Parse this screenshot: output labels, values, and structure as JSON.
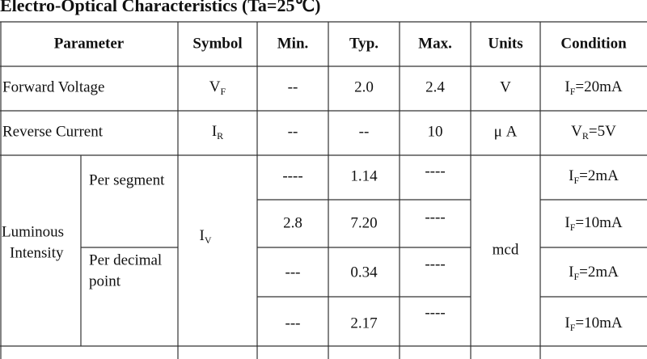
{
  "title": "Electro-Optical Characteristics (Ta=25℃)",
  "table": {
    "header": [
      "Parameter",
      "Symbol",
      "Min.",
      "Typ.",
      "Max.",
      "Units",
      "Condition"
    ],
    "rows": [
      {
        "parameter": "Forward Voltage",
        "symbol": {
          "main": "V",
          "sub": "F"
        },
        "min": "--",
        "typ": "2.0",
        "max": "2.4",
        "units": "V",
        "condition": {
          "main": "I",
          "sub": "F",
          "rest": "=20mA"
        }
      },
      {
        "parameter": "Reverse Current",
        "symbol": {
          "main": "I",
          "sub": "R"
        },
        "min": "--",
        "typ": "--",
        "max": "10",
        "units": "μ A",
        "condition": {
          "main": "V",
          "sub": "R",
          "rest": "=5V"
        }
      }
    ],
    "luminous": {
      "parameter": [
        "Luminous",
        "Intensity"
      ],
      "symbol": {
        "main": "I",
        "sub": "V"
      },
      "units": "mcd",
      "groups": [
        [
          "Per segment"
        ],
        [
          "Per decimal",
          "point"
        ]
      ],
      "rows": [
        {
          "min": "----",
          "typ": "1.14",
          "max": "----",
          "condition": {
            "main": "I",
            "sub": "F",
            "rest": "=2mA"
          }
        },
        {
          "min": "2.8",
          "typ": "7.20",
          "max": "----",
          "condition": {
            "main": "I",
            "sub": "F",
            "rest": "=10mA"
          }
        },
        {
          "min": "---",
          "typ": "0.34",
          "max": "----",
          "condition": {
            "main": "I",
            "sub": "F",
            "rest": "=2mA"
          }
        },
        {
          "min": "---",
          "typ": "2.17",
          "max": "----",
          "condition": {
            "main": "I",
            "sub": "F",
            "rest": "=10mA"
          }
        }
      ]
    }
  }
}
